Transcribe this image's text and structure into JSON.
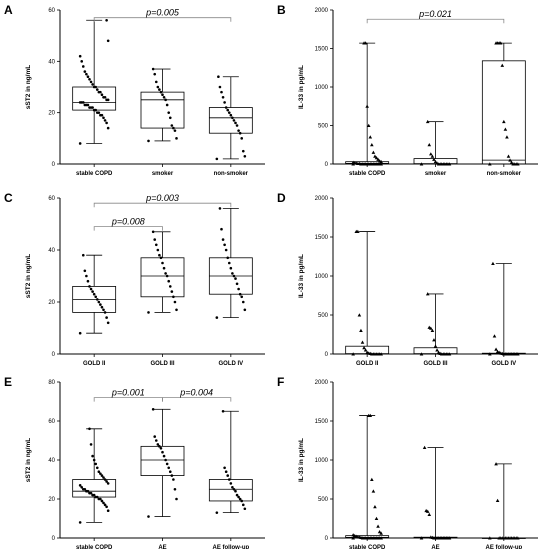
{
  "chart_data": [
    {
      "panel": "A",
      "type": "box",
      "ylabel": "sST2 in ng/mL",
      "ylim": [
        0,
        60
      ],
      "yticks": [
        0,
        20,
        40,
        60
      ],
      "categories": [
        "stable COPD",
        "smoker",
        "non-smoker"
      ],
      "boxes": [
        {
          "min": 8,
          "q1": 21,
          "median": 24,
          "q3": 30,
          "max": 56
        },
        {
          "min": 9,
          "q1": 14,
          "median": 25,
          "q3": 28,
          "max": 37
        },
        {
          "min": 2,
          "q1": 12,
          "median": 18,
          "q3": 22,
          "max": 34
        }
      ],
      "points": [
        [
          8,
          14,
          16,
          17,
          18,
          19,
          19,
          20,
          20,
          21,
          21,
          22,
          22,
          22,
          23,
          23,
          23,
          24,
          24,
          24,
          25,
          25,
          26,
          26,
          27,
          28,
          28,
          29,
          30,
          30,
          31,
          32,
          33,
          34,
          35,
          36,
          38,
          40,
          42,
          48,
          56
        ],
        [
          9,
          10,
          13,
          14,
          15,
          18,
          20,
          23,
          25,
          26,
          27,
          28,
          29,
          30,
          32,
          35,
          37
        ],
        [
          2,
          3,
          5,
          10,
          12,
          13,
          15,
          16,
          17,
          18,
          19,
          20,
          21,
          22,
          24,
          26,
          28,
          30,
          34
        ]
      ],
      "comparisons": [
        {
          "from": 0,
          "to": 2,
          "level": 57,
          "label": "p=0.005"
        }
      ]
    },
    {
      "panel": "B",
      "type": "box",
      "ylabel": "IL-33 in pg/mL",
      "ylim": [
        0,
        2000
      ],
      "yticks": [
        0,
        500,
        1000,
        1500,
        2000
      ],
      "categories": [
        "stable COPD",
        "smoker",
        "non-smoker"
      ],
      "boxes": [
        {
          "min": 0,
          "q1": 0,
          "median": 8,
          "q3": 30,
          "max": 1570
        },
        {
          "min": 0,
          "q1": 0,
          "median": 5,
          "q3": 70,
          "max": 550
        },
        {
          "min": 0,
          "q1": 0,
          "median": 50,
          "q3": 1340,
          "max": 1570
        }
      ],
      "points": [
        [
          0,
          0,
          0,
          0,
          0,
          0,
          0,
          0,
          0,
          0,
          0,
          0,
          0,
          0,
          0,
          5,
          5,
          10,
          15,
          20,
          30,
          40,
          60,
          80,
          100,
          150,
          250,
          350,
          500,
          750,
          1570,
          1570
        ],
        [
          0,
          0,
          0,
          0,
          0,
          0,
          0,
          0,
          0,
          10,
          30,
          60,
          100,
          130,
          250,
          550
        ],
        [
          0,
          0,
          0,
          0,
          0,
          20,
          50,
          100,
          350,
          450,
          550,
          1280,
          1570,
          1570,
          1570,
          1570
        ]
      ],
      "comparisons": [
        {
          "from": 0,
          "to": 2,
          "level": 1880,
          "label": "p=0.021"
        }
      ]
    },
    {
      "panel": "C",
      "type": "box",
      "ylabel": "sST2 in ng/mL",
      "ylim": [
        0,
        60
      ],
      "yticks": [
        0,
        20,
        40,
        60
      ],
      "categories": [
        "GOLD II",
        "GOLD III",
        "GOLD IV"
      ],
      "boxes": [
        {
          "min": 8,
          "q1": 16,
          "median": 21,
          "q3": 26,
          "max": 38
        },
        {
          "min": 16,
          "q1": 22,
          "median": 30,
          "q3": 37,
          "max": 47
        },
        {
          "min": 14,
          "q1": 23,
          "median": 30,
          "q3": 37,
          "max": 56
        }
      ],
      "points": [
        [
          8,
          12,
          14,
          16,
          17,
          18,
          19,
          20,
          21,
          22,
          23,
          24,
          25,
          26,
          28,
          30,
          32,
          38
        ],
        [
          16,
          17,
          20,
          22,
          24,
          26,
          28,
          30,
          31,
          33,
          35,
          37,
          38,
          40,
          42,
          44,
          47
        ],
        [
          14,
          17,
          20,
          22,
          23,
          25,
          27,
          29,
          30,
          31,
          33,
          35,
          37,
          40,
          42,
          44,
          48,
          56
        ]
      ],
      "comparisons": [
        {
          "from": 0,
          "to": 1,
          "level": 49,
          "label": "p=0.008"
        },
        {
          "from": 0,
          "to": 2,
          "level": 58,
          "label": "p=0.003"
        }
      ]
    },
    {
      "panel": "D",
      "type": "box",
      "ylabel": "IL-33 in pg/mL",
      "ylim": [
        0,
        2000
      ],
      "yticks": [
        0,
        500,
        1000,
        1500,
        2000
      ],
      "categories": [
        "GOLD II",
        "GOLD III",
        "GOLD IV"
      ],
      "boxes": [
        {
          "min": 0,
          "q1": 0,
          "median": 5,
          "q3": 100,
          "max": 1570
        },
        {
          "min": 0,
          "q1": 0,
          "median": 5,
          "q3": 80,
          "max": 770
        },
        {
          "min": 0,
          "q1": 0,
          "median": 0,
          "q3": 10,
          "max": 1160
        }
      ],
      "points": [
        [
          0,
          0,
          0,
          0,
          0,
          0,
          0,
          0,
          5,
          10,
          20,
          50,
          80,
          150,
          300,
          500,
          1570,
          1570
        ],
        [
          0,
          0,
          0,
          0,
          0,
          0,
          0,
          5,
          20,
          50,
          100,
          180,
          300,
          330,
          340,
          770
        ],
        [
          0,
          0,
          0,
          0,
          0,
          0,
          0,
          0,
          0,
          0,
          0,
          5,
          10,
          20,
          30,
          60,
          230,
          1160
        ]
      ],
      "comparisons": []
    },
    {
      "panel": "E",
      "type": "box",
      "ylabel": "sST2 in ng/mL",
      "ylim": [
        0,
        80
      ],
      "yticks": [
        0,
        20,
        40,
        60,
        80
      ],
      "categories": [
        "stable COPD",
        "AE",
        "AE follow-up"
      ],
      "boxes": [
        {
          "min": 8,
          "q1": 21,
          "median": 24,
          "q3": 30,
          "max": 56
        },
        {
          "min": 11,
          "q1": 32,
          "median": 40,
          "q3": 47,
          "max": 66
        },
        {
          "min": 13,
          "q1": 19,
          "median": 25,
          "q3": 30,
          "max": 65
        }
      ],
      "points": [
        [
          8,
          14,
          16,
          17,
          18,
          19,
          20,
          20,
          21,
          21,
          22,
          22,
          23,
          23,
          24,
          24,
          25,
          25,
          26,
          27,
          28,
          29,
          30,
          31,
          32,
          33,
          34,
          36,
          38,
          40,
          42,
          48,
          56
        ],
        [
          11,
          20,
          25,
          30,
          32,
          34,
          36,
          38,
          40,
          42,
          44,
          46,
          47,
          48,
          50,
          52,
          66
        ],
        [
          13,
          15,
          17,
          19,
          20,
          21,
          22,
          24,
          25,
          26,
          28,
          30,
          32,
          34,
          36,
          65
        ]
      ],
      "comparisons": [
        {
          "from": 0,
          "to": 1,
          "level": 72,
          "label": "p=0.001"
        },
        {
          "from": 1,
          "to": 2,
          "level": 72,
          "label": "p=0.004"
        }
      ]
    },
    {
      "panel": "F",
      "type": "box",
      "ylabel": "IL-33 in pg/mL",
      "ylim": [
        0,
        2000
      ],
      "yticks": [
        0,
        500,
        1000,
        1500,
        2000
      ],
      "categories": [
        "stable COPD",
        "AE",
        "AE follow-up"
      ],
      "boxes": [
        {
          "min": 0,
          "q1": 0,
          "median": 8,
          "q3": 30,
          "max": 1570
        },
        {
          "min": 0,
          "q1": 0,
          "median": 0,
          "q3": 10,
          "max": 1160
        },
        {
          "min": 0,
          "q1": 0,
          "median": 0,
          "q3": 0,
          "max": 950
        }
      ],
      "points": [
        [
          0,
          0,
          0,
          0,
          0,
          0,
          0,
          0,
          0,
          0,
          0,
          0,
          0,
          0,
          5,
          10,
          15,
          20,
          30,
          40,
          60,
          80,
          150,
          250,
          400,
          600,
          750,
          1570,
          1570
        ],
        [
          0,
          0,
          0,
          0,
          0,
          0,
          0,
          0,
          0,
          0,
          0,
          0,
          5,
          10,
          300,
          340,
          350,
          1160
        ],
        [
          0,
          0,
          0,
          0,
          0,
          0,
          0,
          0,
          0,
          0,
          0,
          0,
          0,
          0,
          480,
          950
        ]
      ],
      "comparisons": []
    }
  ]
}
